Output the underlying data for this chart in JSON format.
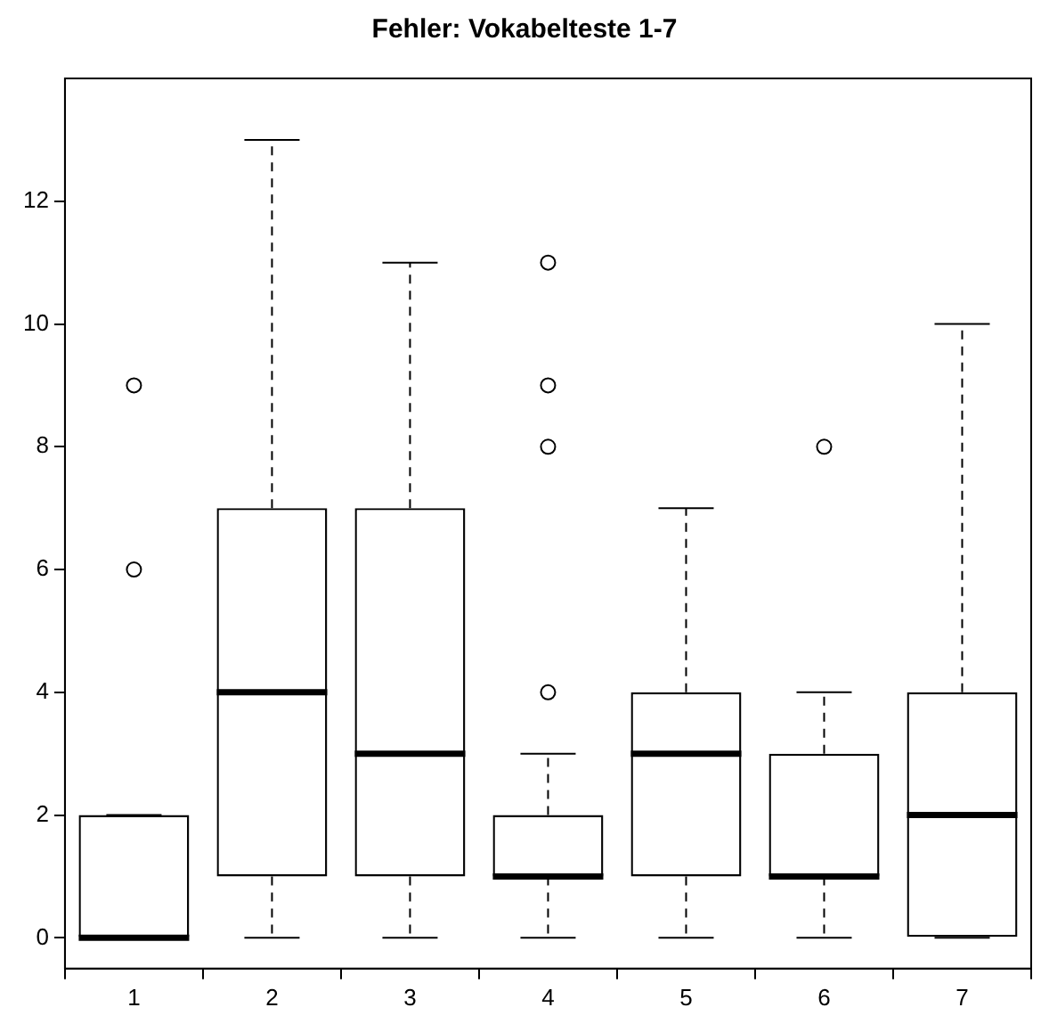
{
  "chart_data": {
    "type": "box",
    "title": "Fehler: Vokabelteste 1-7",
    "categories": [
      "1",
      "2",
      "3",
      "4",
      "5",
      "6",
      "7"
    ],
    "boxes": [
      {
        "low": 0,
        "q1": 0,
        "median": 0,
        "q3": 2,
        "high": 2,
        "outliers": [
          6,
          9
        ]
      },
      {
        "low": 0,
        "q1": 1,
        "median": 4,
        "q3": 7,
        "high": 13
      },
      {
        "low": 0,
        "q1": 1,
        "median": 3,
        "q3": 7,
        "high": 11
      },
      {
        "low": 0,
        "q1": 1,
        "median": 1,
        "q3": 2,
        "high": 3,
        "outliers": [
          4,
          8,
          9,
          11
        ]
      },
      {
        "low": 0,
        "q1": 1,
        "median": 3,
        "q3": 4,
        "high": 7
      },
      {
        "low": 0,
        "q1": 1,
        "median": 1,
        "q3": 3,
        "high": 4,
        "outliers": [
          8
        ]
      },
      {
        "low": 0,
        "q1": 0,
        "median": 2,
        "q3": 4,
        "high": 10
      }
    ],
    "color": "#000000",
    "ylim": [
      -0.5,
      14
    ],
    "yticks": [
      0,
      2,
      4,
      6,
      8,
      10,
      12
    ],
    "grid": false,
    "legend": false,
    "marker": "circle",
    "line_style": "dashed"
  }
}
